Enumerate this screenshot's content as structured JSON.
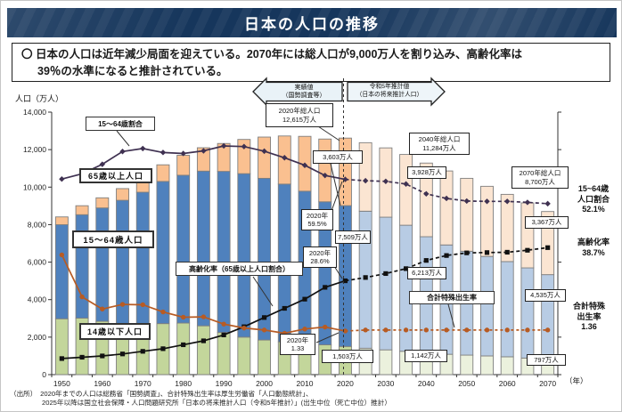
{
  "title": "日本の人口の推移",
  "summary": {
    "text": "〇 日本の人口は近年減少局面を迎えている。2070年には総人口が9,000万人を割り込み、高齢化率は\n39％の水準になると推計されている。"
  },
  "banners": {
    "actual": "実績値\n（国勢調査等）",
    "projection": "令和5年推計値\n（日本の将来推計人口）"
  },
  "series_labels": {
    "working_ratio": "15～64歳割合",
    "elderly": "65歳以上人口",
    "working": "15～64歳人口",
    "child": "14歳以下人口",
    "aging": "高齢化率（65歳以上人口割合）",
    "fertility": "合計特殊出生率"
  },
  "callouts": {
    "total_2020": "2020年総人口\n12,615万人",
    "elderly_2020": "3,603万人",
    "ratio_2020": "2020年\n59.5%",
    "working_2020": "7,509万人",
    "aging_2020": "2020年\n28.6%",
    "fertility_2020": "2020年\n1.33",
    "child_2020": "1,503万人",
    "total_2040": "2040年総人口\n11,284万人",
    "elderly_2040": "3,928万人",
    "working_2040": "6,213万人",
    "child_2040": "1,142万人",
    "total_2070": "2070年総人口\n8,700万人",
    "elderly_2070": "3,367万人",
    "working_2070": "4,535万人",
    "child_2070": "797万人"
  },
  "right_labels": {
    "working_share": "15~64歳\n人口割合\n52.1%",
    "aging": "高齢化率\n38.7%",
    "fertility": "合計特殊\n出生率\n1.36"
  },
  "source": {
    "text": "（出所）　2020年までの人口は総務省「国勢調査」、合計特殊出生率は厚生労働省「人口動態統計」、\n2025年以降は国立社会保障・人口問題研究所「日本の将来推計人口（令和5年推計）」(出生中位（死亡中位）推計）"
  },
  "chart_data": {
    "type": "bar",
    "subtype": "stacked-bar-with-lines",
    "unit": "万人",
    "categories": [
      1950,
      1955,
      1960,
      1965,
      1970,
      1975,
      1980,
      1985,
      1990,
      1995,
      2000,
      2005,
      2010,
      2015,
      2020,
      2025,
      2030,
      2035,
      2040,
      2045,
      2050,
      2055,
      2060,
      2065,
      2070
    ],
    "actual_through": 2020,
    "bar_series": [
      {
        "name": "14歳以下人口",
        "color_actual": "#c3d69b",
        "color_projected": "#ebf1dd",
        "values": [
          2979,
          3012,
          2843,
          2553,
          2515,
          2722,
          2751,
          2603,
          2249,
          2001,
          1847,
          1752,
          1680,
          1589,
          1503,
          1407,
          1321,
          1246,
          1142,
          1085,
          1041,
          997,
          951,
          884,
          797
        ]
      },
      {
        "name": "15～64歳人口",
        "color_actual": "#4f81bd",
        "color_projected": "#b8cce4",
        "values": [
          5017,
          5517,
          6047,
          6744,
          7212,
          7581,
          7883,
          8251,
          8590,
          8716,
          8622,
          8409,
          8103,
          7629,
          7509,
          7310,
          7076,
          6722,
          6213,
          5832,
          5540,
          5307,
          5078,
          4809,
          4535
        ]
      },
      {
        "name": "65歳以上人口",
        "color_actual": "#fac090",
        "color_projected": "#fbe5d2",
        "values": [
          416,
          479,
          540,
          624,
          739,
          887,
          1065,
          1247,
          1489,
          1826,
          2201,
          2567,
          2925,
          3347,
          3603,
          3653,
          3696,
          3774,
          3928,
          3945,
          3888,
          3740,
          3586,
          3466,
          3367
        ]
      }
    ],
    "line_series": [
      {
        "name": "15～64歳割合",
        "axis": "percent",
        "unit": "%",
        "color": "#3f3151",
        "marker": "diamond",
        "values": [
          59.6,
          61.2,
          64.1,
          68.0,
          68.9,
          67.7,
          67.4,
          68.2,
          69.7,
          69.5,
          68.1,
          66.1,
          63.8,
          60.7,
          59.5,
          59.1,
          58.9,
          58.1,
          55.1,
          53.7,
          52.9,
          52.8,
          52.8,
          52.5,
          52.1
        ]
      },
      {
        "name": "高齢化率（65歳以上人口割合）",
        "axis": "percent",
        "unit": "%",
        "color": "#111111",
        "marker": "square",
        "values": [
          4.9,
          5.3,
          5.7,
          6.3,
          7.1,
          7.9,
          9.1,
          10.3,
          12.1,
          14.6,
          17.4,
          20.2,
          23.0,
          26.6,
          28.6,
          29.6,
          30.8,
          32.3,
          34.8,
          36.3,
          37.1,
          37.2,
          37.3,
          37.9,
          38.7
        ]
      },
      {
        "name": "合計特殊出生率",
        "axis": "fertility",
        "color": "#b75b23",
        "marker": "circle",
        "values": [
          3.65,
          2.37,
          2.0,
          2.14,
          2.13,
          1.91,
          1.75,
          1.76,
          1.54,
          1.42,
          1.36,
          1.26,
          1.39,
          1.45,
          1.33,
          1.36,
          1.36,
          1.36,
          1.36,
          1.36,
          1.36,
          1.36,
          1.36,
          1.36,
          1.36
        ]
      }
    ],
    "left_axis": {
      "title": "人口（万人）",
      "max": 14000,
      "ticks": [
        "0",
        "2,000",
        "4,000",
        "6,000",
        "8,000",
        "10,000",
        "12,000",
        "14,000"
      ]
    },
    "right_axis": {
      "percent_max": 80,
      "fertility_max": 8,
      "labels_visible": false
    },
    "x_tick_labels": [
      "1950",
      "1960",
      "1970",
      "1980",
      "1990",
      "2000",
      "2010",
      "2020",
      "2030",
      "2040",
      "2050",
      "2060",
      "2070"
    ],
    "x_unit": "（年）",
    "legend_position": "on-chart-callouts",
    "grid": false
  }
}
